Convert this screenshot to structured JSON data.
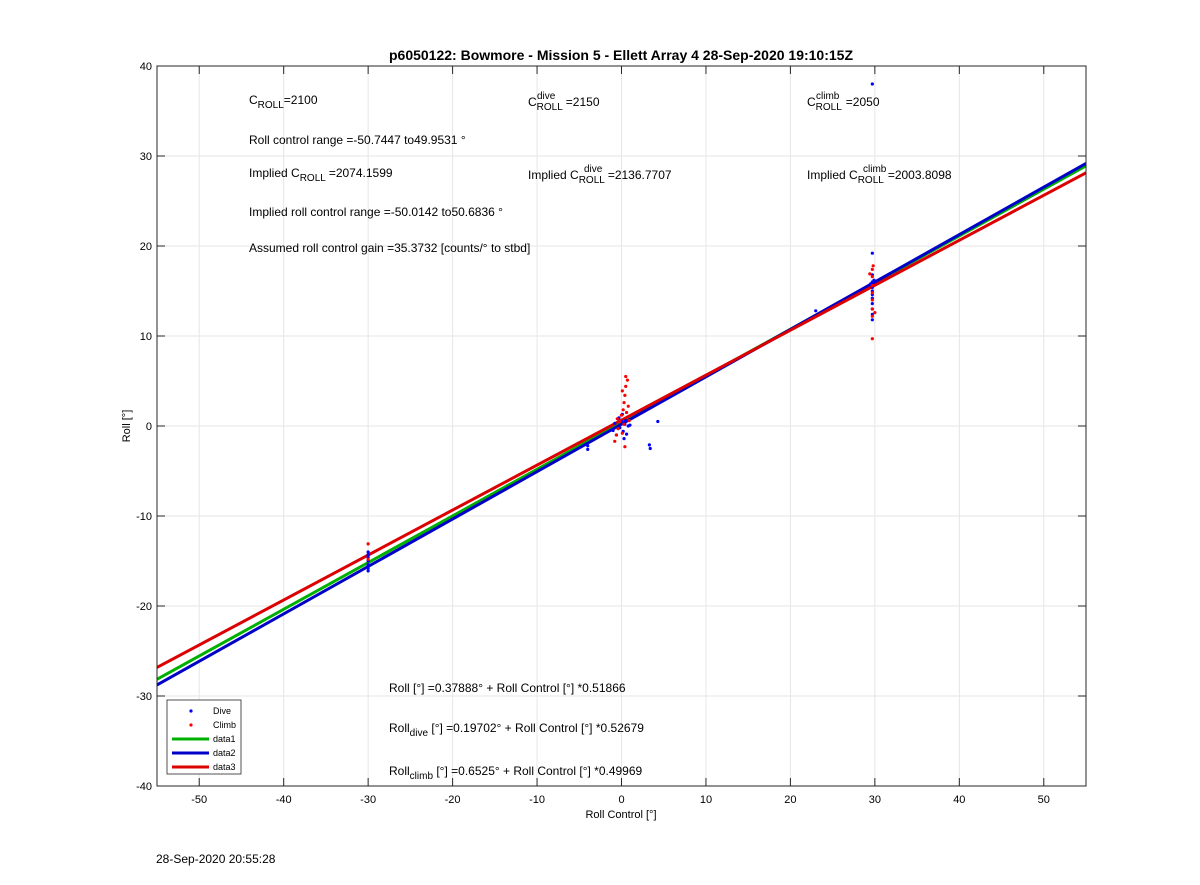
{
  "chart_data": {
    "type": "scatter",
    "title": "p6050122: Bowmore - Mission 5 - Ellett Array 4 28-Sep-2020 19:10:15Z",
    "xlabel": "Roll Control [°]",
    "ylabel": "Roll [°]",
    "xlim": [
      -55,
      55
    ],
    "ylim": [
      -40,
      40
    ],
    "xticks": [
      -50,
      -40,
      -30,
      -20,
      -10,
      0,
      10,
      20,
      30,
      40,
      50
    ],
    "yticks": [
      -40,
      -30,
      -20,
      -10,
      0,
      10,
      20,
      30,
      40
    ],
    "grid": true,
    "legend_position": "bottom-left",
    "series": [
      {
        "name": "Dive",
        "kind": "points",
        "color": "#0000ff",
        "points": [
          [
            -30,
            -14
          ],
          [
            -30,
            -14.6
          ],
          [
            -30,
            -15
          ],
          [
            -30,
            -15.4
          ],
          [
            -30,
            -15.8
          ],
          [
            -30,
            -16.1
          ],
          [
            -30,
            -14.3
          ],
          [
            -4,
            -2.2
          ],
          [
            -4,
            -2.6
          ],
          [
            -1,
            -0.5
          ],
          [
            -0.8,
            0.3
          ],
          [
            -0.6,
            -1
          ],
          [
            -0.4,
            0.8
          ],
          [
            -0.2,
            -0.2
          ],
          [
            0,
            0.5
          ],
          [
            0.2,
            -0.6
          ],
          [
            0.4,
            0.2
          ],
          [
            0.6,
            -0.9
          ],
          [
            0.8,
            0
          ],
          [
            0.3,
            -1.4
          ],
          [
            -0.3,
            0.9
          ],
          [
            0.1,
            1.3
          ],
          [
            0.5,
            0.6
          ],
          [
            1,
            0.1
          ],
          [
            3.3,
            -2.1
          ],
          [
            3.4,
            -2.5
          ],
          [
            4.3,
            0.5
          ],
          [
            29.7,
            38
          ],
          [
            29.7,
            19.2
          ],
          [
            29.7,
            16.8
          ],
          [
            29.7,
            16
          ],
          [
            29.7,
            15.4
          ],
          [
            29.7,
            15
          ],
          [
            29.7,
            14.6
          ],
          [
            29.7,
            14.2
          ],
          [
            29.7,
            13.6
          ],
          [
            29.7,
            13
          ],
          [
            29.7,
            12.4
          ],
          [
            29.7,
            11.8
          ],
          [
            29.5,
            15.8
          ],
          [
            29.9,
            16.2
          ],
          [
            23,
            12.8
          ]
        ]
      },
      {
        "name": "Climb",
        "kind": "points",
        "color": "#ff0000",
        "points": [
          [
            -30,
            -13.1
          ],
          [
            -30,
            -14.8
          ],
          [
            -0.8,
            -1.7
          ],
          [
            -0.6,
            -1
          ],
          [
            -0.4,
            -0.3
          ],
          [
            -0.2,
            0.5
          ],
          [
            0,
            1.2
          ],
          [
            0.2,
            1.8
          ],
          [
            0.3,
            2.6
          ],
          [
            0.4,
            3.4
          ],
          [
            0.5,
            4.4
          ],
          [
            0.5,
            5.5
          ],
          [
            0.7,
            5.1
          ],
          [
            0.3,
            0.2
          ],
          [
            0.6,
            1.5
          ],
          [
            0.8,
            2.2
          ],
          [
            -0.5,
            0.8
          ],
          [
            0.1,
            -0.8
          ],
          [
            0.4,
            -2.3
          ],
          [
            0.9,
            0.6
          ],
          [
            0.1,
            3.9
          ],
          [
            29.7,
            17.4
          ],
          [
            29.7,
            16.6
          ],
          [
            29.7,
            15.6
          ],
          [
            29.7,
            14.8
          ],
          [
            29.7,
            14
          ],
          [
            29.7,
            13
          ],
          [
            29.7,
            12.2
          ],
          [
            29.7,
            9.7
          ],
          [
            29.4,
            16.9
          ],
          [
            30,
            12.6
          ],
          [
            29.8,
            17.8
          ]
        ]
      },
      {
        "name": "data1",
        "kind": "line",
        "color": "#00b000",
        "intercept": 0.37888,
        "slope": 0.51866
      },
      {
        "name": "data2",
        "kind": "line",
        "color": "#0000c8",
        "intercept": 0.19702,
        "slope": 0.52679
      },
      {
        "name": "data3",
        "kind": "line",
        "color": "#dd0000",
        "intercept": 0.6525,
        "slope": 0.49969
      }
    ],
    "annotations": {
      "c_roll": {
        "label": "C",
        "sub": "ROLL",
        "value": "=2100"
      },
      "c_roll_dive": {
        "label": "C",
        "sup": "dive",
        "sub": "ROLL",
        "value": "=2150"
      },
      "c_roll_climb": {
        "label": "C",
        "sup": "climb",
        "sub": "ROLL",
        "value": "=2050"
      },
      "roll_control_range": "Roll control range =-50.7447 to49.9531 °",
      "implied_c_roll": {
        "prefix": "Implied C",
        "sub": "ROLL",
        "value": "=2074.1599"
      },
      "implied_c_roll_dive": {
        "prefix": "Implied C",
        "sup": "dive",
        "sub": "ROLL",
        "value": "=2136.7707"
      },
      "implied_c_roll_climb": {
        "prefix": "Implied C",
        "sup": "climb",
        "sub": "ROLL",
        "value": "=2003.8098"
      },
      "implied_range": "Implied roll control range =-50.0142 to50.6836 °",
      "assumed_gain": "Assumed roll control gain =35.3732 [counts/° to stbd]",
      "fit_all": {
        "prefix": "Roll",
        "sub": "",
        "rest": " [°] =0.37888° + Roll Control [°] *0.51866"
      },
      "fit_dive": {
        "prefix": "Roll",
        "sub": "dive",
        "rest": " [°] =0.19702° + Roll Control [°] *0.52679"
      },
      "fit_climb": {
        "prefix": "Roll",
        "sub": "climb",
        "rest": " [°] =0.6525° + Roll Control [°] *0.49969"
      }
    }
  },
  "footer_timestamp": "28-Sep-2020 20:55:28"
}
